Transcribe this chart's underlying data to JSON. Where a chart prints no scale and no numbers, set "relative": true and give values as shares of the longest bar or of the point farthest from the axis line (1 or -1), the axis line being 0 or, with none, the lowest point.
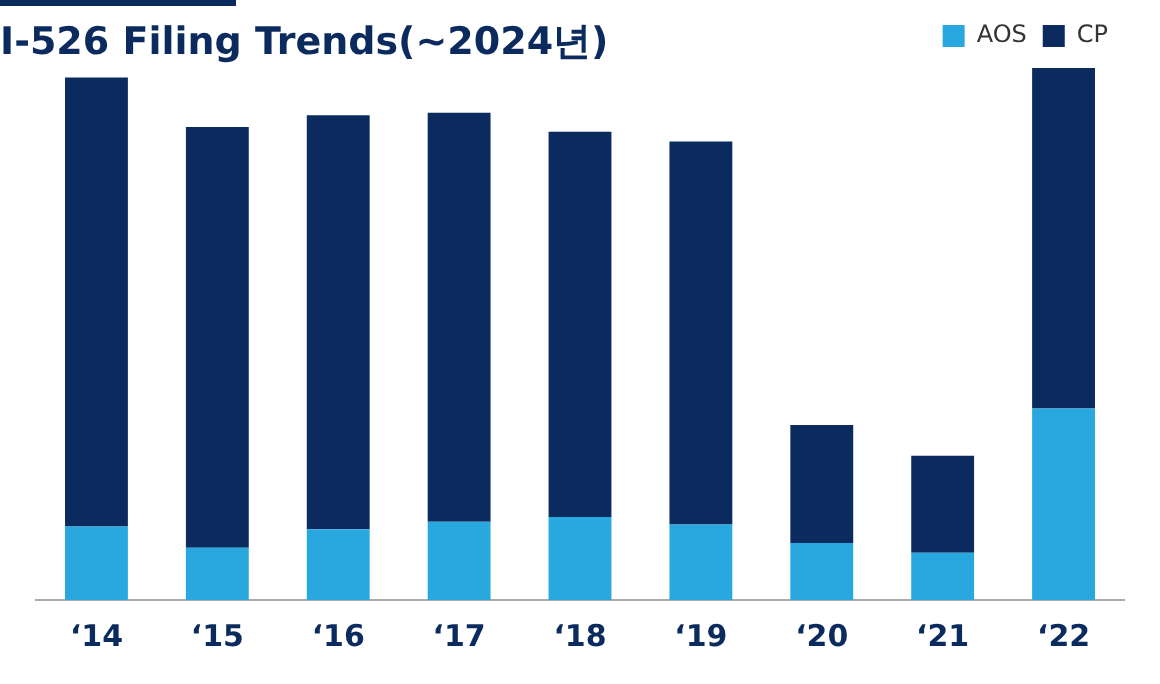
{
  "chart_data": {
    "type": "bar",
    "title": "I-526 Filing Trends(~2024년)",
    "categories": [
      "‘14",
      "‘15",
      "‘16",
      "‘17",
      "‘18",
      "‘19",
      "‘20",
      "‘21",
      "‘22"
    ],
    "stacked": true,
    "relative": true,
    "legend": "top right",
    "grid": false,
    "series": [
      {
        "name": "AOS",
        "color": "#29a8e0",
        "values": [
          0.138,
          0.098,
          0.133,
          0.147,
          0.156,
          0.142,
          0.107,
          0.089,
          0.36
        ]
      },
      {
        "name": "CP",
        "color": "#0b2b5e",
        "values": [
          0.844,
          0.791,
          0.778,
          0.769,
          0.724,
          0.72,
          0.222,
          0.182,
          0.64
        ]
      }
    ]
  }
}
